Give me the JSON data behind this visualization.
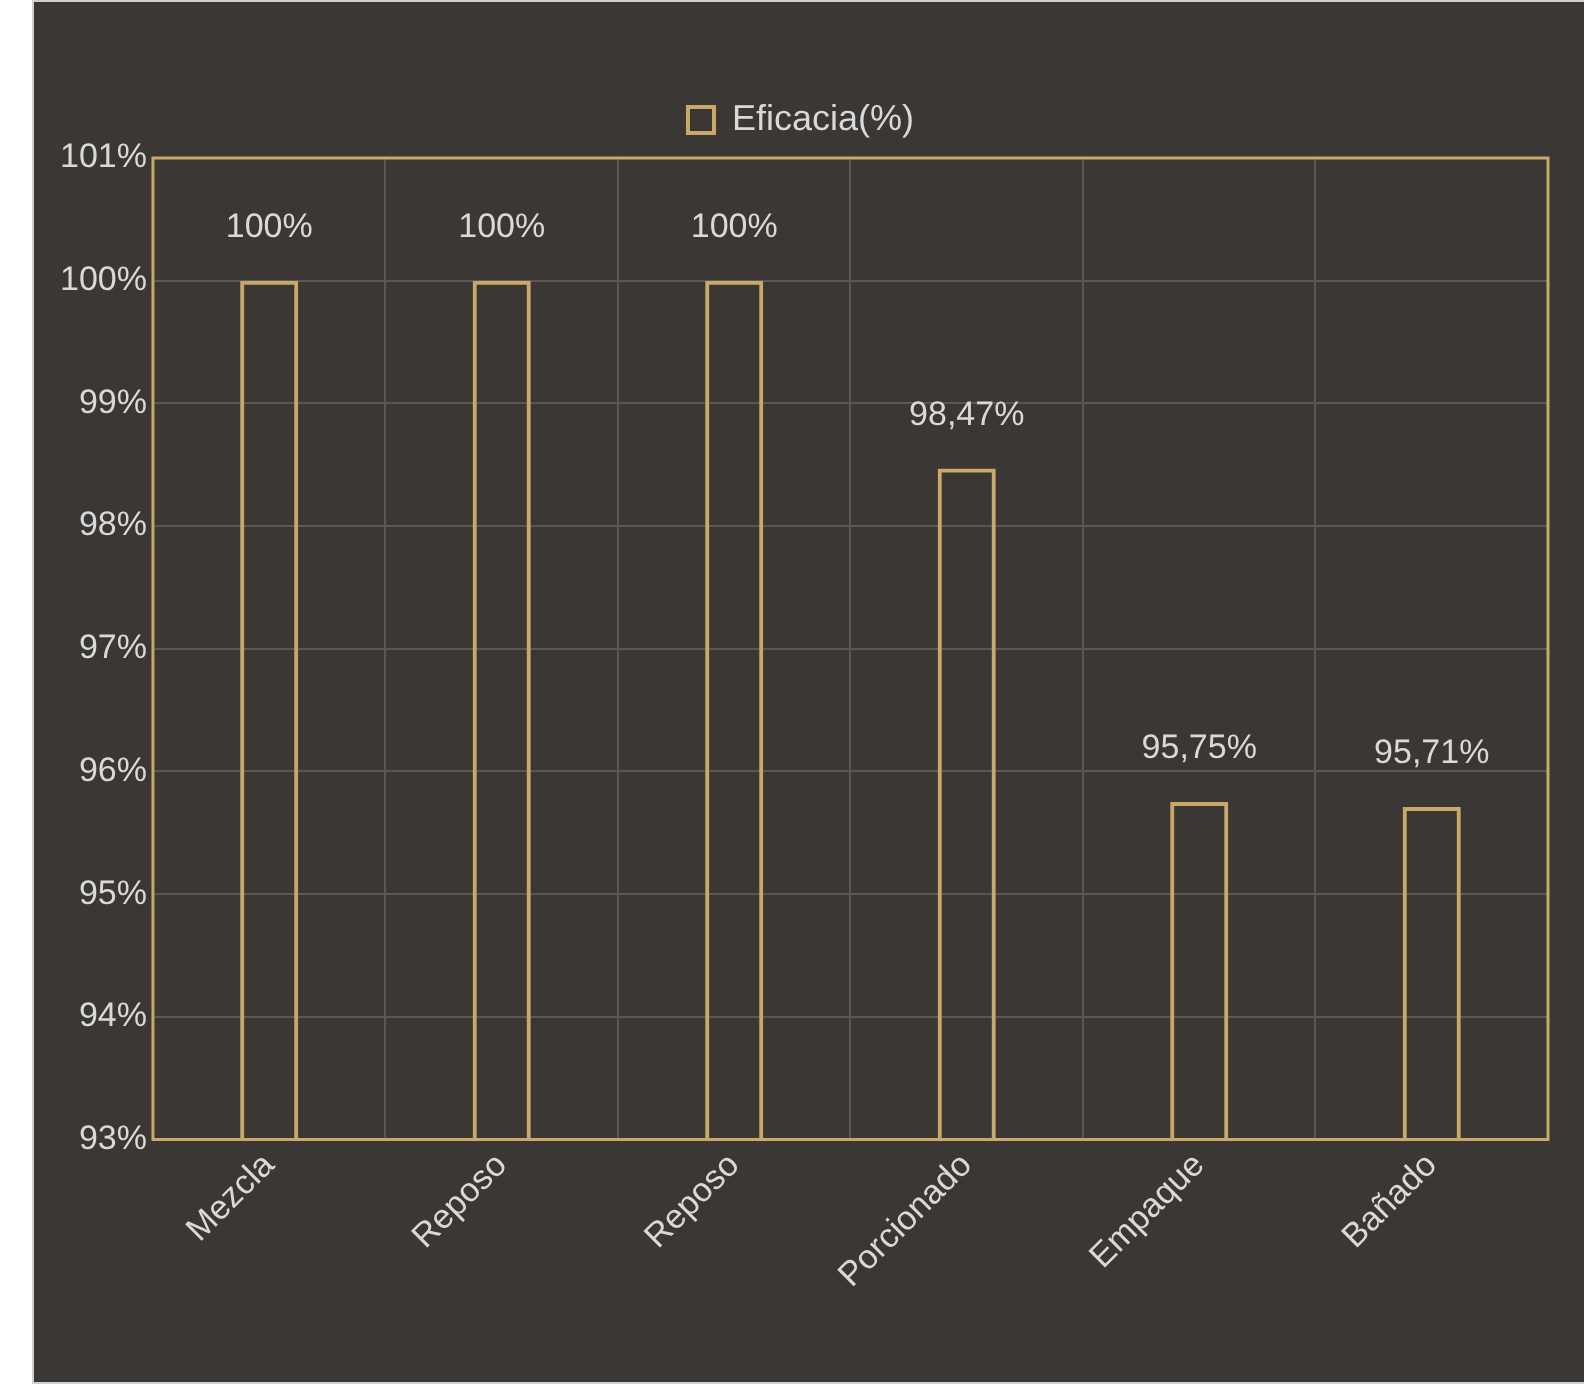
{
  "chart_data": {
    "type": "bar",
    "categories": [
      "Mezcla",
      "Reposo",
      "Reposo",
      "Porcionado",
      "Empaque",
      "Bañado"
    ],
    "series": [
      {
        "name": "Eficacia(%)",
        "color": "#c8a96a",
        "values": [
          100,
          100,
          100,
          98.47,
          95.75,
          95.71
        ],
        "value_labels": [
          "100%",
          "100%",
          "100%",
          "98,47%",
          "95,75%",
          "95,71%"
        ]
      }
    ],
    "ylim": [
      93,
      101
    ],
    "yticks": [
      {
        "value": 93,
        "label": "93%"
      },
      {
        "value": 94,
        "label": "94%"
      },
      {
        "value": 95,
        "label": "95%"
      },
      {
        "value": 96,
        "label": "96%"
      },
      {
        "value": 97,
        "label": "97%"
      },
      {
        "value": 98,
        "label": "98%"
      },
      {
        "value": 99,
        "label": "99%"
      },
      {
        "value": 100,
        "label": "100%"
      },
      {
        "value": 101,
        "label": "101%"
      }
    ],
    "grid": true,
    "legend": "top"
  }
}
